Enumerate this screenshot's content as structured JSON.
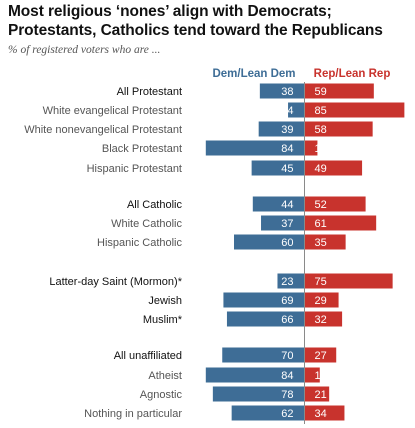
{
  "chart_data": {
    "type": "bar",
    "title_lines": [
      "Most religious ‘nones’ align with Democrats;",
      "Protestants, Catholics tend toward the Republicans"
    ],
    "subtitle": "% of registered voters who are ...",
    "series": [
      {
        "name": "Dem/Lean Dem",
        "color": "#3e6d96"
      },
      {
        "name": "Rep/Lean Rep",
        "color": "#c8332d"
      }
    ],
    "categories": [
      "All Protestant",
      "White evangelical Protestant",
      "White nonevangelical Protestant",
      "Black Protestant",
      "Hispanic Protestant",
      "All Catholic",
      "White Catholic",
      "Hispanic Catholic",
      "Latter-day Saint (Mormon)*",
      "Jewish",
      "Muslim*",
      "All unaffiliated",
      "Atheist",
      "Agnostic",
      "Nothing in particular"
    ],
    "dem_values": [
      38,
      14,
      39,
      84,
      45,
      44,
      37,
      60,
      23,
      69,
      66,
      70,
      84,
      78,
      62
    ],
    "rep_values": [
      59,
      85,
      58,
      11,
      49,
      52,
      61,
      35,
      75,
      29,
      32,
      27,
      13,
      21,
      34
    ],
    "emphasized": [
      true,
      false,
      false,
      false,
      false,
      true,
      false,
      false,
      true,
      true,
      true,
      true,
      false,
      false,
      false
    ]
  }
}
